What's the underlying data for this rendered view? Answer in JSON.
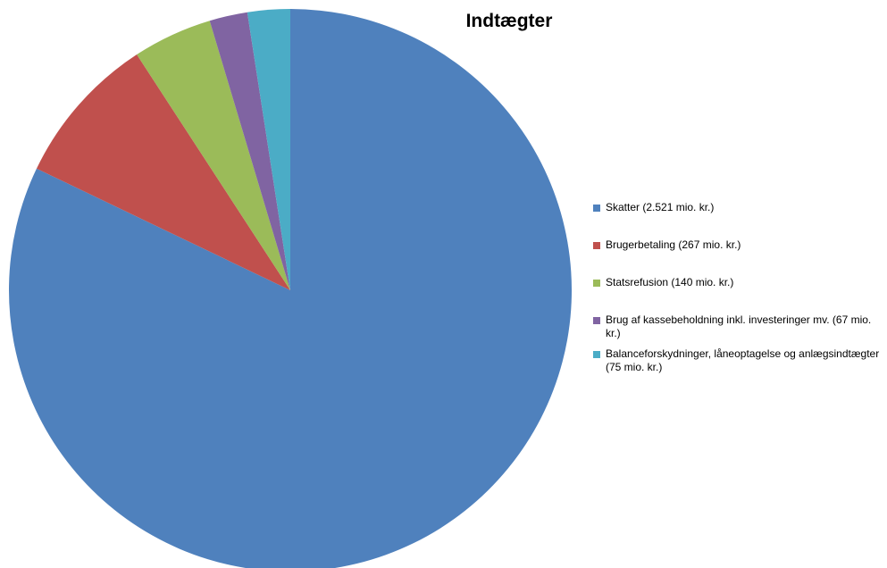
{
  "chart_data": {
    "type": "pie",
    "title": "Indtægter",
    "slices": [
      {
        "label": "Skatter (2.521 mio. kr.)",
        "value": 2521,
        "color": "#4F81BD"
      },
      {
        "label": "Brugerbetaling (267  mio. kr.)",
        "value": 267,
        "color": "#C0504D"
      },
      {
        "label": "Statsrefusion (140 mio. kr.)",
        "value": 140,
        "color": "#9BBB59"
      },
      {
        "label": "Brug af kassebeholdning inkl. investeringer mv. (67 mio. kr.)",
        "value": 67,
        "color": "#8064A2"
      },
      {
        "label": "Balanceforskydninger, låneoptagelse og anlægsindtægter (75 mio. kr.)",
        "value": 75,
        "color": "#4BACC6"
      }
    ],
    "legend_position": "right"
  }
}
